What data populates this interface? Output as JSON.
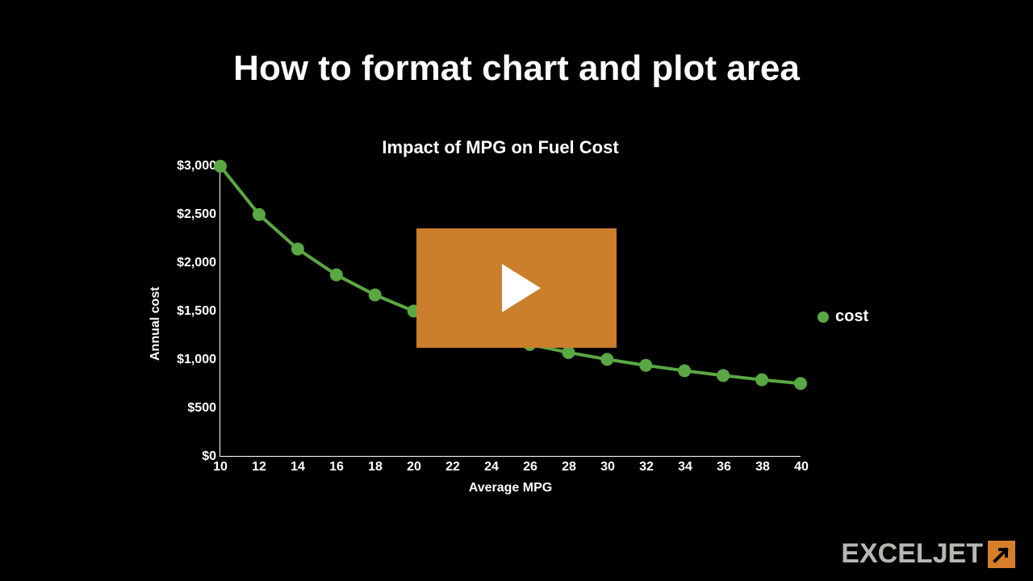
{
  "page": {
    "title": "How to format chart and plot area",
    "background_color": "#000000",
    "text_color": "#ffffff"
  },
  "chart": {
    "type": "line",
    "title": "Impact of MPG on Fuel Cost",
    "title_fontsize": 22,
    "xlabel": "Average MPG",
    "ylabel": "Annual cost",
    "label_fontsize": 16,
    "xlim": [
      10,
      40
    ],
    "xtick_step": 2,
    "ylim": [
      0,
      3000
    ],
    "ytick_step": 500,
    "y_tick_prefix": "$",
    "y_tick_thousands_sep": ",",
    "axis_line_color": "#ffffff",
    "plot_background": "#000000",
    "grid": false,
    "series": {
      "name": "cost",
      "color": "#5aa843",
      "line_width": 4,
      "marker": "circle",
      "marker_radius": 8,
      "x": [
        10,
        12,
        14,
        16,
        18,
        20,
        22,
        24,
        26,
        28,
        30,
        32,
        34,
        36,
        38,
        40
      ],
      "y": [
        3000,
        2500,
        2143,
        1875,
        1667,
        1500,
        1364,
        1250,
        1154,
        1071,
        1000,
        938,
        882,
        833,
        789,
        750
      ]
    },
    "legend": {
      "position": "right",
      "label": "cost",
      "marker_color": "#5aa843"
    },
    "x_ticks": [
      "10",
      "12",
      "14",
      "16",
      "18",
      "20",
      "22",
      "24",
      "26",
      "28",
      "30",
      "32",
      "34",
      "36",
      "38",
      "40"
    ],
    "y_ticks": [
      "$0",
      "$500",
      "$1,000",
      "$1,500",
      "$2,000",
      "$2,500",
      "$3,000"
    ]
  },
  "play_button": {
    "color": "#cb7e2b",
    "icon_color": "#ffffff"
  },
  "brand": {
    "text": "EXCELJET",
    "text_color": "#b9b6b2",
    "icon_bg": "#d57f2a",
    "icon_arrow_color": "#000000"
  }
}
